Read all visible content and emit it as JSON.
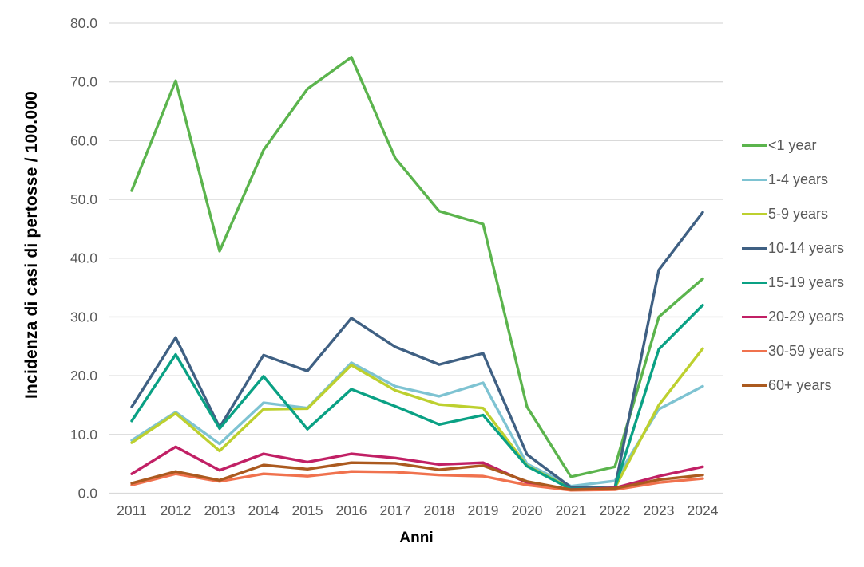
{
  "colors": {
    "grid": "#d9d9d9",
    "axis_text": "#595959",
    "title_text": "#000000",
    "background": "#ffffff"
  },
  "chart_data": {
    "type": "line",
    "title": "",
    "xlabel": "Anni",
    "ylabel": "Incidenza di casi di pertosse / 100.000",
    "x": [
      2011,
      2012,
      2013,
      2014,
      2015,
      2016,
      2017,
      2018,
      2019,
      2020,
      2021,
      2022,
      2023,
      2024
    ],
    "ylim": [
      0,
      80
    ],
    "ytick_step": 10,
    "ytick_labels": [
      "0.0",
      "10.0",
      "20.0",
      "30.0",
      "40.0",
      "50.0",
      "60.0",
      "70.0",
      "80.0"
    ],
    "grid": true,
    "legend_position": "right",
    "series": [
      {
        "name": "<1 year",
        "color": "#5bb44d",
        "values": [
          51.5,
          70.2,
          41.2,
          58.4,
          68.8,
          74.2,
          57.0,
          48.0,
          45.8,
          14.7,
          2.8,
          4.5,
          30.0,
          36.5
        ]
      },
      {
        "name": "1-4 years",
        "color": "#7ec3d2",
        "values": [
          9.0,
          13.8,
          8.4,
          15.4,
          14.5,
          22.2,
          18.2,
          16.5,
          18.8,
          5.0,
          1.2,
          2.1,
          14.3,
          18.2
        ]
      },
      {
        "name": "5-9 years",
        "color": "#bdd02f",
        "values": [
          8.6,
          13.6,
          7.2,
          14.3,
          14.4,
          21.8,
          17.5,
          15.1,
          14.5,
          4.7,
          0.8,
          0.9,
          15.0,
          24.6
        ]
      },
      {
        "name": "10-14 years",
        "color": "#3f6083",
        "values": [
          14.7,
          26.5,
          11.2,
          23.5,
          20.8,
          29.8,
          24.9,
          21.9,
          23.8,
          6.6,
          1.0,
          0.9,
          38.0,
          47.8
        ]
      },
      {
        "name": "15-19 years",
        "color": "#0aa184",
        "values": [
          12.3,
          23.6,
          11.0,
          19.9,
          10.9,
          17.7,
          14.8,
          11.7,
          13.3,
          4.6,
          0.7,
          0.9,
          24.5,
          32.0
        ]
      },
      {
        "name": "20-29 years",
        "color": "#c12065",
        "values": [
          3.3,
          7.9,
          3.9,
          6.7,
          5.3,
          6.7,
          6.0,
          4.9,
          5.2,
          1.8,
          0.6,
          0.9,
          2.9,
          4.5
        ]
      },
      {
        "name": "30-59 years",
        "color": "#f0724e",
        "values": [
          1.4,
          3.3,
          2.0,
          3.3,
          2.9,
          3.7,
          3.6,
          3.1,
          2.9,
          1.4,
          0.5,
          0.6,
          1.8,
          2.5
        ]
      },
      {
        "name": "60+ years",
        "color": "#ab5a1f",
        "values": [
          1.7,
          3.7,
          2.2,
          4.8,
          4.1,
          5.2,
          5.1,
          4.0,
          4.7,
          2.0,
          0.6,
          0.8,
          2.3,
          3.1
        ]
      }
    ]
  }
}
